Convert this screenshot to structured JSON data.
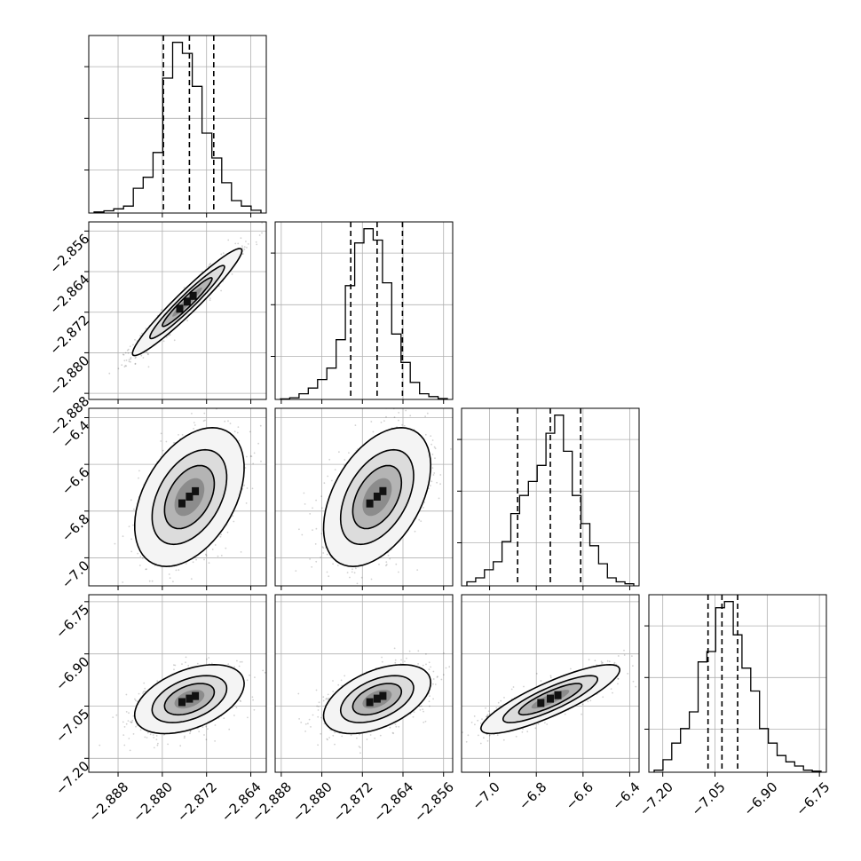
{
  "chart_data": {
    "type": "corner",
    "grid": true,
    "variables": [
      {
        "ticks": [
          -2.888,
          -2.88,
          -2.872,
          -2.864
        ],
        "tick_labels": [
          "−2.888",
          "−2.880",
          "−2.872",
          "−2.864"
        ],
        "range": [
          -2.8933,
          -2.8612
        ]
      },
      {
        "ticks": [
          -2.888,
          -2.88,
          -2.872,
          -2.864,
          -2.856
        ],
        "tick_labels": [
          "−2.888",
          "−2.880",
          "−2.872",
          "−2.864",
          "−2.856"
        ],
        "range": [
          -2.8892,
          -2.8542
        ]
      },
      {
        "ticks": [
          -7.0,
          -6.8,
          -6.6,
          -6.4
        ],
        "tick_labels": [
          "−7.0",
          "−6.8",
          "−6.6",
          "−6.4"
        ],
        "range": [
          -7.12,
          -6.36
        ]
      },
      {
        "ticks": [
          -7.2,
          -7.05,
          -6.9,
          -6.75
        ],
        "tick_labels": [
          "−7.20",
          "−7.05",
          "−6.90",
          "−6.75"
        ],
        "range": [
          -7.24,
          -6.73
        ]
      }
    ],
    "histograms": [
      {
        "variable": 0,
        "values": [
          0.4,
          0.8,
          1.5,
          2.5,
          9,
          13,
          22,
          49,
          62,
          58,
          46,
          29,
          20,
          11,
          4.5,
          2.5,
          1
        ],
        "ymax": 62,
        "quantiles": [
          -2.8798,
          -2.8751,
          -2.8707
        ]
      },
      {
        "variable": 1,
        "values": [
          0.2,
          0.6,
          2,
          4,
          7,
          11,
          21,
          40,
          55,
          60,
          56,
          41,
          23,
          13,
          6,
          2,
          1,
          0.3
        ],
        "ymax": 60,
        "quantiles": [
          -2.8743,
          -2.8691,
          -2.8641
        ]
      },
      {
        "variable": 2,
        "values": [
          2,
          4,
          8,
          12,
          22,
          36,
          45,
          52,
          60,
          76,
          85,
          67,
          45,
          31,
          20,
          11,
          4,
          2,
          1
        ],
        "ymax": 85,
        "quantiles": [
          -6.88,
          -6.74,
          -6.61
        ]
      },
      {
        "variable": 3,
        "values": [
          1,
          6,
          14,
          21,
          29,
          53,
          58,
          79,
          82,
          66,
          50,
          39,
          21,
          14,
          8,
          5,
          3,
          1,
          0.5
        ],
        "ymax": 82,
        "quantiles": [
          -7.07,
          -7.03,
          -6.985
        ]
      }
    ],
    "pairs": [
      {
        "x": 0,
        "y": 1,
        "center": [
          -2.8755,
          -2.87
        ],
        "sd": [
          0.0045,
          0.0048
        ],
        "rho": 0.96
      },
      {
        "x": 0,
        "y": 2,
        "center": [
          -2.8751,
          -6.74
        ],
        "sd": [
          0.0045,
          0.135
        ],
        "rho": 0.42
      },
      {
        "x": 1,
        "y": 2,
        "center": [
          -2.8691,
          -6.74
        ],
        "sd": [
          0.0048,
          0.135
        ],
        "rho": 0.45
      },
      {
        "x": 0,
        "y": 3,
        "center": [
          -2.8751,
          -7.03
        ],
        "sd": [
          0.0045,
          0.045
        ],
        "rho": 0.45
      },
      {
        "x": 1,
        "y": 3,
        "center": [
          -2.8691,
          -7.03
        ],
        "sd": [
          0.0048,
          0.045
        ],
        "rho": 0.48
      },
      {
        "x": 2,
        "y": 3,
        "center": [
          -6.74,
          -7.03
        ],
        "sd": [
          0.135,
          0.045
        ],
        "rho": 0.85
      }
    ],
    "contour_levels_sigma": [
      1,
      1.5,
      2.2
    ]
  }
}
